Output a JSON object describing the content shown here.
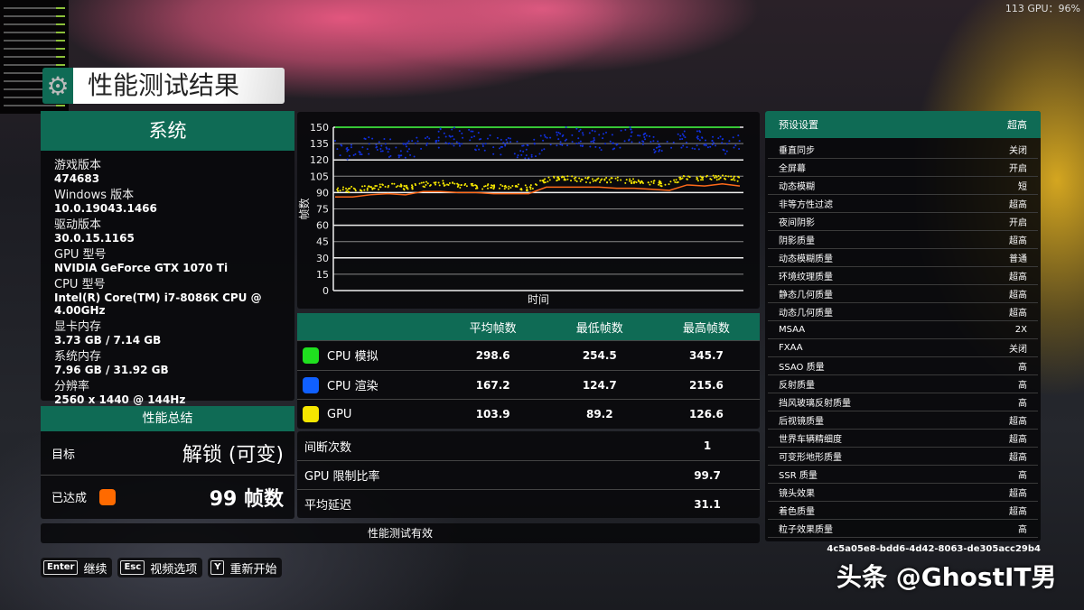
{
  "fps_overlay": "113 GPU：96%",
  "title": "性能测试结果",
  "system": {
    "header": "系统",
    "items": [
      {
        "label": "游戏版本",
        "value": "474683"
      },
      {
        "label": "Windows 版本",
        "value": "10.0.19043.1466"
      },
      {
        "label": "驱动版本",
        "value": "30.0.15.1165"
      },
      {
        "label": "GPU 型号",
        "value": "NVIDIA GeForce GTX 1070 Ti"
      },
      {
        "label": "CPU 型号",
        "value": "Intel(R) Core(TM) i7-8086K CPU @ 4.00GHz"
      },
      {
        "label": "显卡内存",
        "value": "3.73 GB / 7.14 GB"
      },
      {
        "label": "系统内存",
        "value": "7.96 GB / 31.92 GB"
      },
      {
        "label": "分辨率",
        "value": "2560 x 1440 @ 144Hz"
      }
    ]
  },
  "summary": {
    "header": "性能总结",
    "target_label": "目标",
    "target_value": "解锁 (可变)",
    "achieved_label": "已达成",
    "achieved_value": "99 帧数",
    "achieved_color": "#ff6a00"
  },
  "table": {
    "headers": [
      "",
      "平均帧数",
      "最低帧数",
      "最高帧数"
    ],
    "rows": [
      {
        "name": "CPU 模拟",
        "color": "#1fe01f",
        "avg": "298.6",
        "min": "254.5",
        "max": "345.7"
      },
      {
        "name": "CPU 渲染",
        "color": "#1060ff",
        "avg": "167.2",
        "min": "124.7",
        "max": "215.6"
      },
      {
        "name": "GPU",
        "color": "#f5e600",
        "avg": "103.9",
        "min": "89.2",
        "max": "126.6"
      }
    ]
  },
  "stats": [
    {
      "label": "间断次数",
      "value": "1"
    },
    {
      "label": "GPU 限制比率",
      "value": "99.7"
    },
    {
      "label": "平均延迟",
      "value": "31.1"
    }
  ],
  "valid_text": "性能测试有效",
  "buttons": [
    {
      "key": "Enter",
      "label": "继续"
    },
    {
      "key": "Esc",
      "label": "视频选项"
    },
    {
      "key": "Y",
      "label": "重新开始"
    }
  ],
  "settings": {
    "header_label": "预设设置",
    "header_value": "超高",
    "rows": [
      [
        "垂直同步",
        "关闭"
      ],
      [
        "全屏幕",
        "开启"
      ],
      [
        "动态模糊",
        "短"
      ],
      [
        "非等方性过滤",
        "超高"
      ],
      [
        "夜间阴影",
        "开启"
      ],
      [
        "阴影质量",
        "超高"
      ],
      [
        "动态模糊质量",
        "普通"
      ],
      [
        "环境纹理质量",
        "超高"
      ],
      [
        "静态几何质量",
        "超高"
      ],
      [
        "动态几何质量",
        "超高"
      ],
      [
        "MSAA",
        "2X"
      ],
      [
        "FXAA",
        "关闭"
      ],
      [
        "SSAO 质量",
        "高"
      ],
      [
        "反射质量",
        "高"
      ],
      [
        "挡风玻璃反射质量",
        "高"
      ],
      [
        "后视镜质量",
        "超高"
      ],
      [
        "世界车辆精细度",
        "超高"
      ],
      [
        "可变形地形质量",
        "超高"
      ],
      [
        "SSR 质量",
        "高"
      ],
      [
        "镜头效果",
        "超高"
      ],
      [
        "着色质量",
        "超高"
      ],
      [
        "粒子效果质量",
        "高"
      ]
    ]
  },
  "guid": "4c5a05e8-bdd6-4d42-8063-de305acc29b4",
  "watermark": "头条 @GhostIT男",
  "chart_data": {
    "type": "line",
    "xlabel": "时间",
    "ylabel": "帧数",
    "ylim": [
      0,
      150
    ],
    "yticks": [
      0,
      15,
      30,
      45,
      60,
      75,
      90,
      105,
      120,
      135,
      150
    ],
    "grid": true,
    "series": [
      {
        "color": "#1fe01f",
        "style": "line",
        "values": [
          150,
          150,
          150,
          150,
          150,
          150,
          150,
          150,
          150,
          150,
          150,
          150,
          150,
          150,
          150,
          150,
          150,
          150,
          150,
          150,
          150,
          150,
          150,
          150
        ]
      },
      {
        "color": "#1030e0",
        "style": "scatter",
        "values": [
          130,
          128,
          134,
          132,
          127,
          136,
          140,
          142,
          138,
          133,
          131,
          128,
          138,
          142,
          141,
          137,
          139,
          143,
          135,
          134,
          140,
          137,
          133,
          138
        ]
      },
      {
        "color": "#f5e600",
        "style": "scatter",
        "values": [
          92,
          93,
          95,
          96,
          95,
          97,
          99,
          97,
          96,
          95,
          96,
          94,
          102,
          103,
          102,
          101,
          102,
          100,
          99,
          98,
          104,
          103,
          104,
          102
        ]
      },
      {
        "color": "#ff6a1a",
        "style": "line",
        "values": [
          86,
          86,
          88,
          89,
          88,
          91,
          91,
          90,
          90,
          89,
          89,
          89,
          95,
          95,
          95,
          95,
          94,
          94,
          93,
          92,
          97,
          96,
          98,
          96
        ]
      }
    ]
  }
}
